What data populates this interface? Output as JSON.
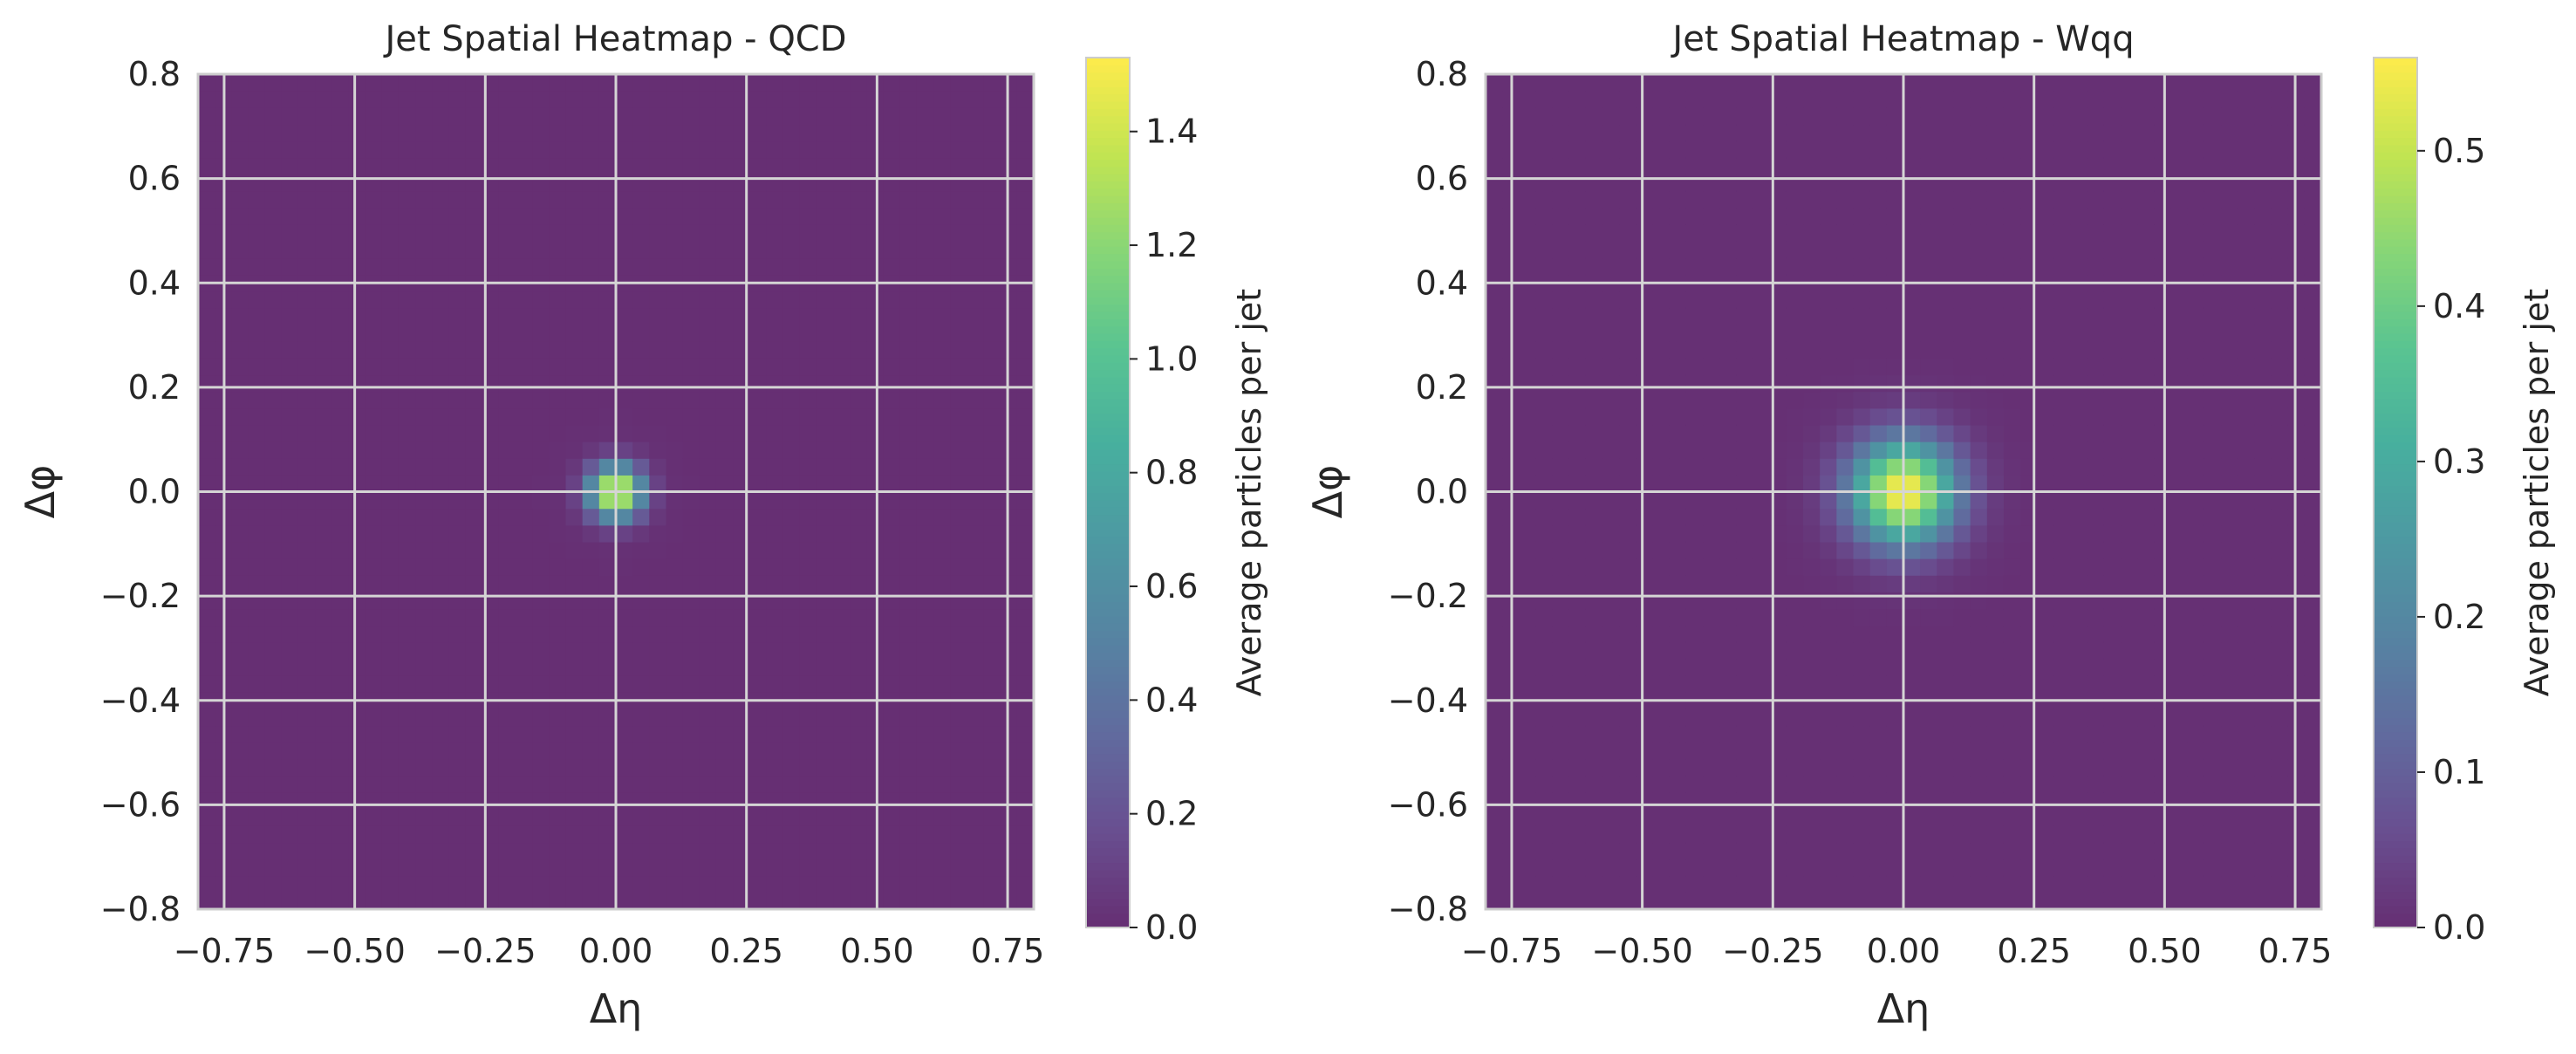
{
  "chart_data": [
    {
      "type": "heatmap",
      "title": "Jet Spatial Heatmap - QCD",
      "xlabel": "Δη",
      "ylabel": "Δφ",
      "xlim": [
        -0.8,
        0.8
      ],
      "ylim": [
        -0.8,
        0.8
      ],
      "x_ticks": [
        -0.75,
        -0.5,
        -0.25,
        0.0,
        0.25,
        0.5,
        0.75
      ],
      "x_tick_labels": [
        "−0.75",
        "−0.50",
        "−0.25",
        "0.00",
        "0.25",
        "0.50",
        "0.75"
      ],
      "y_ticks": [
        -0.8,
        -0.6,
        -0.4,
        -0.2,
        0.0,
        0.2,
        0.4,
        0.6,
        0.8
      ],
      "y_tick_labels": [
        "−0.8",
        "−0.6",
        "−0.4",
        "−0.2",
        "0.0",
        "0.2",
        "0.4",
        "0.6",
        "0.8"
      ],
      "grid": true,
      "bins": [
        50,
        50
      ],
      "peak": {
        "x": 0.0,
        "y": 0.0,
        "value": 1.53
      },
      "spread": 0.035,
      "background": 0.004,
      "colormap": "viridis",
      "colorbar": {
        "label": "Average particles per jet",
        "range": [
          0.0,
          1.53
        ],
        "ticks": [
          0.0,
          0.2,
          0.4,
          0.6,
          0.8,
          1.0,
          1.2,
          1.4
        ],
        "tick_labels": [
          "0.0",
          "0.2",
          "0.4",
          "0.6",
          "0.8",
          "1.0",
          "1.2",
          "1.4"
        ]
      }
    },
    {
      "type": "heatmap",
      "title": "Jet Spatial Heatmap - Wqq",
      "xlabel": "Δη",
      "ylabel": "Δφ",
      "xlim": [
        -0.8,
        0.8
      ],
      "ylim": [
        -0.8,
        0.8
      ],
      "x_ticks": [
        -0.75,
        -0.5,
        -0.25,
        0.0,
        0.25,
        0.5,
        0.75
      ],
      "x_tick_labels": [
        "−0.75",
        "−0.50",
        "−0.25",
        "0.00",
        "0.25",
        "0.50",
        "0.75"
      ],
      "y_ticks": [
        -0.8,
        -0.6,
        -0.4,
        -0.2,
        0.0,
        0.2,
        0.4,
        0.6,
        0.8
      ],
      "y_tick_labels": [
        "−0.8",
        "−0.6",
        "−0.4",
        "−0.2",
        "0.0",
        "0.2",
        "0.4",
        "0.6",
        "0.8"
      ],
      "grid": true,
      "bins": [
        50,
        50
      ],
      "peak": {
        "x": 0.0,
        "y": 0.0,
        "value": 0.56
      },
      "spread": 0.07,
      "background": 0.003,
      "colormap": "viridis",
      "colorbar": {
        "label": "Average particles per jet",
        "range": [
          0.0,
          0.56
        ],
        "ticks": [
          0.0,
          0.1,
          0.2,
          0.3,
          0.4,
          0.5
        ],
        "tick_labels": [
          "0.0",
          "0.1",
          "0.2",
          "0.3",
          "0.4",
          "0.5"
        ]
      }
    }
  ],
  "colors": {
    "background": "#ffffff",
    "grid": "#d5d5d5",
    "frame": "#cccccc",
    "text": "#262626"
  }
}
